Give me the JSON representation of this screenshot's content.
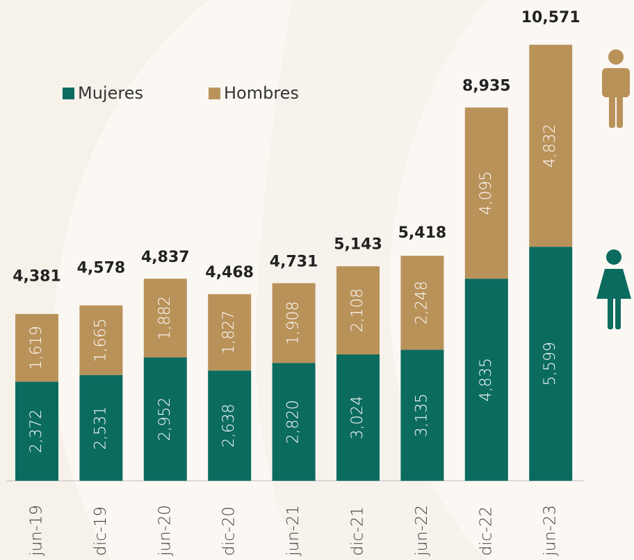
{
  "chart_data": {
    "type": "stacked-bar",
    "categories": [
      "jun-19",
      "dic-19",
      "jun-20",
      "dic-20",
      "jun-21",
      "dic-21",
      "jun-22",
      "dic-22",
      "jun-23"
    ],
    "series": [
      {
        "name": "Mujeres",
        "color": "#0b6b5f",
        "values": [
          2372,
          2531,
          2952,
          2638,
          2820,
          3024,
          3135,
          4835,
          5599
        ],
        "value_labels": [
          "2,372",
          "2,531",
          "2,952",
          "2,638",
          "2,820",
          "3,024",
          "3,135",
          "4,835",
          "5,599"
        ]
      },
      {
        "name": "Hombres",
        "color": "#b9925a",
        "values": [
          1619,
          1665,
          1882,
          1827,
          1908,
          2108,
          2248,
          4095,
          4832
        ],
        "value_labels": [
          "1,619",
          "1,665",
          "1,882",
          "1,827",
          "1,908",
          "2,108",
          "2,248",
          "4,095",
          "4,832"
        ]
      }
    ],
    "totals": {
      "values": [
        4381,
        4578,
        4837,
        4468,
        4731,
        5143,
        5418,
        8935,
        10571
      ],
      "value_labels": [
        "4,381",
        "4,578",
        "4,837",
        "4,468",
        "4,731",
        "5,143",
        "5,418",
        "8,935",
        "10,571"
      ]
    }
  }
}
